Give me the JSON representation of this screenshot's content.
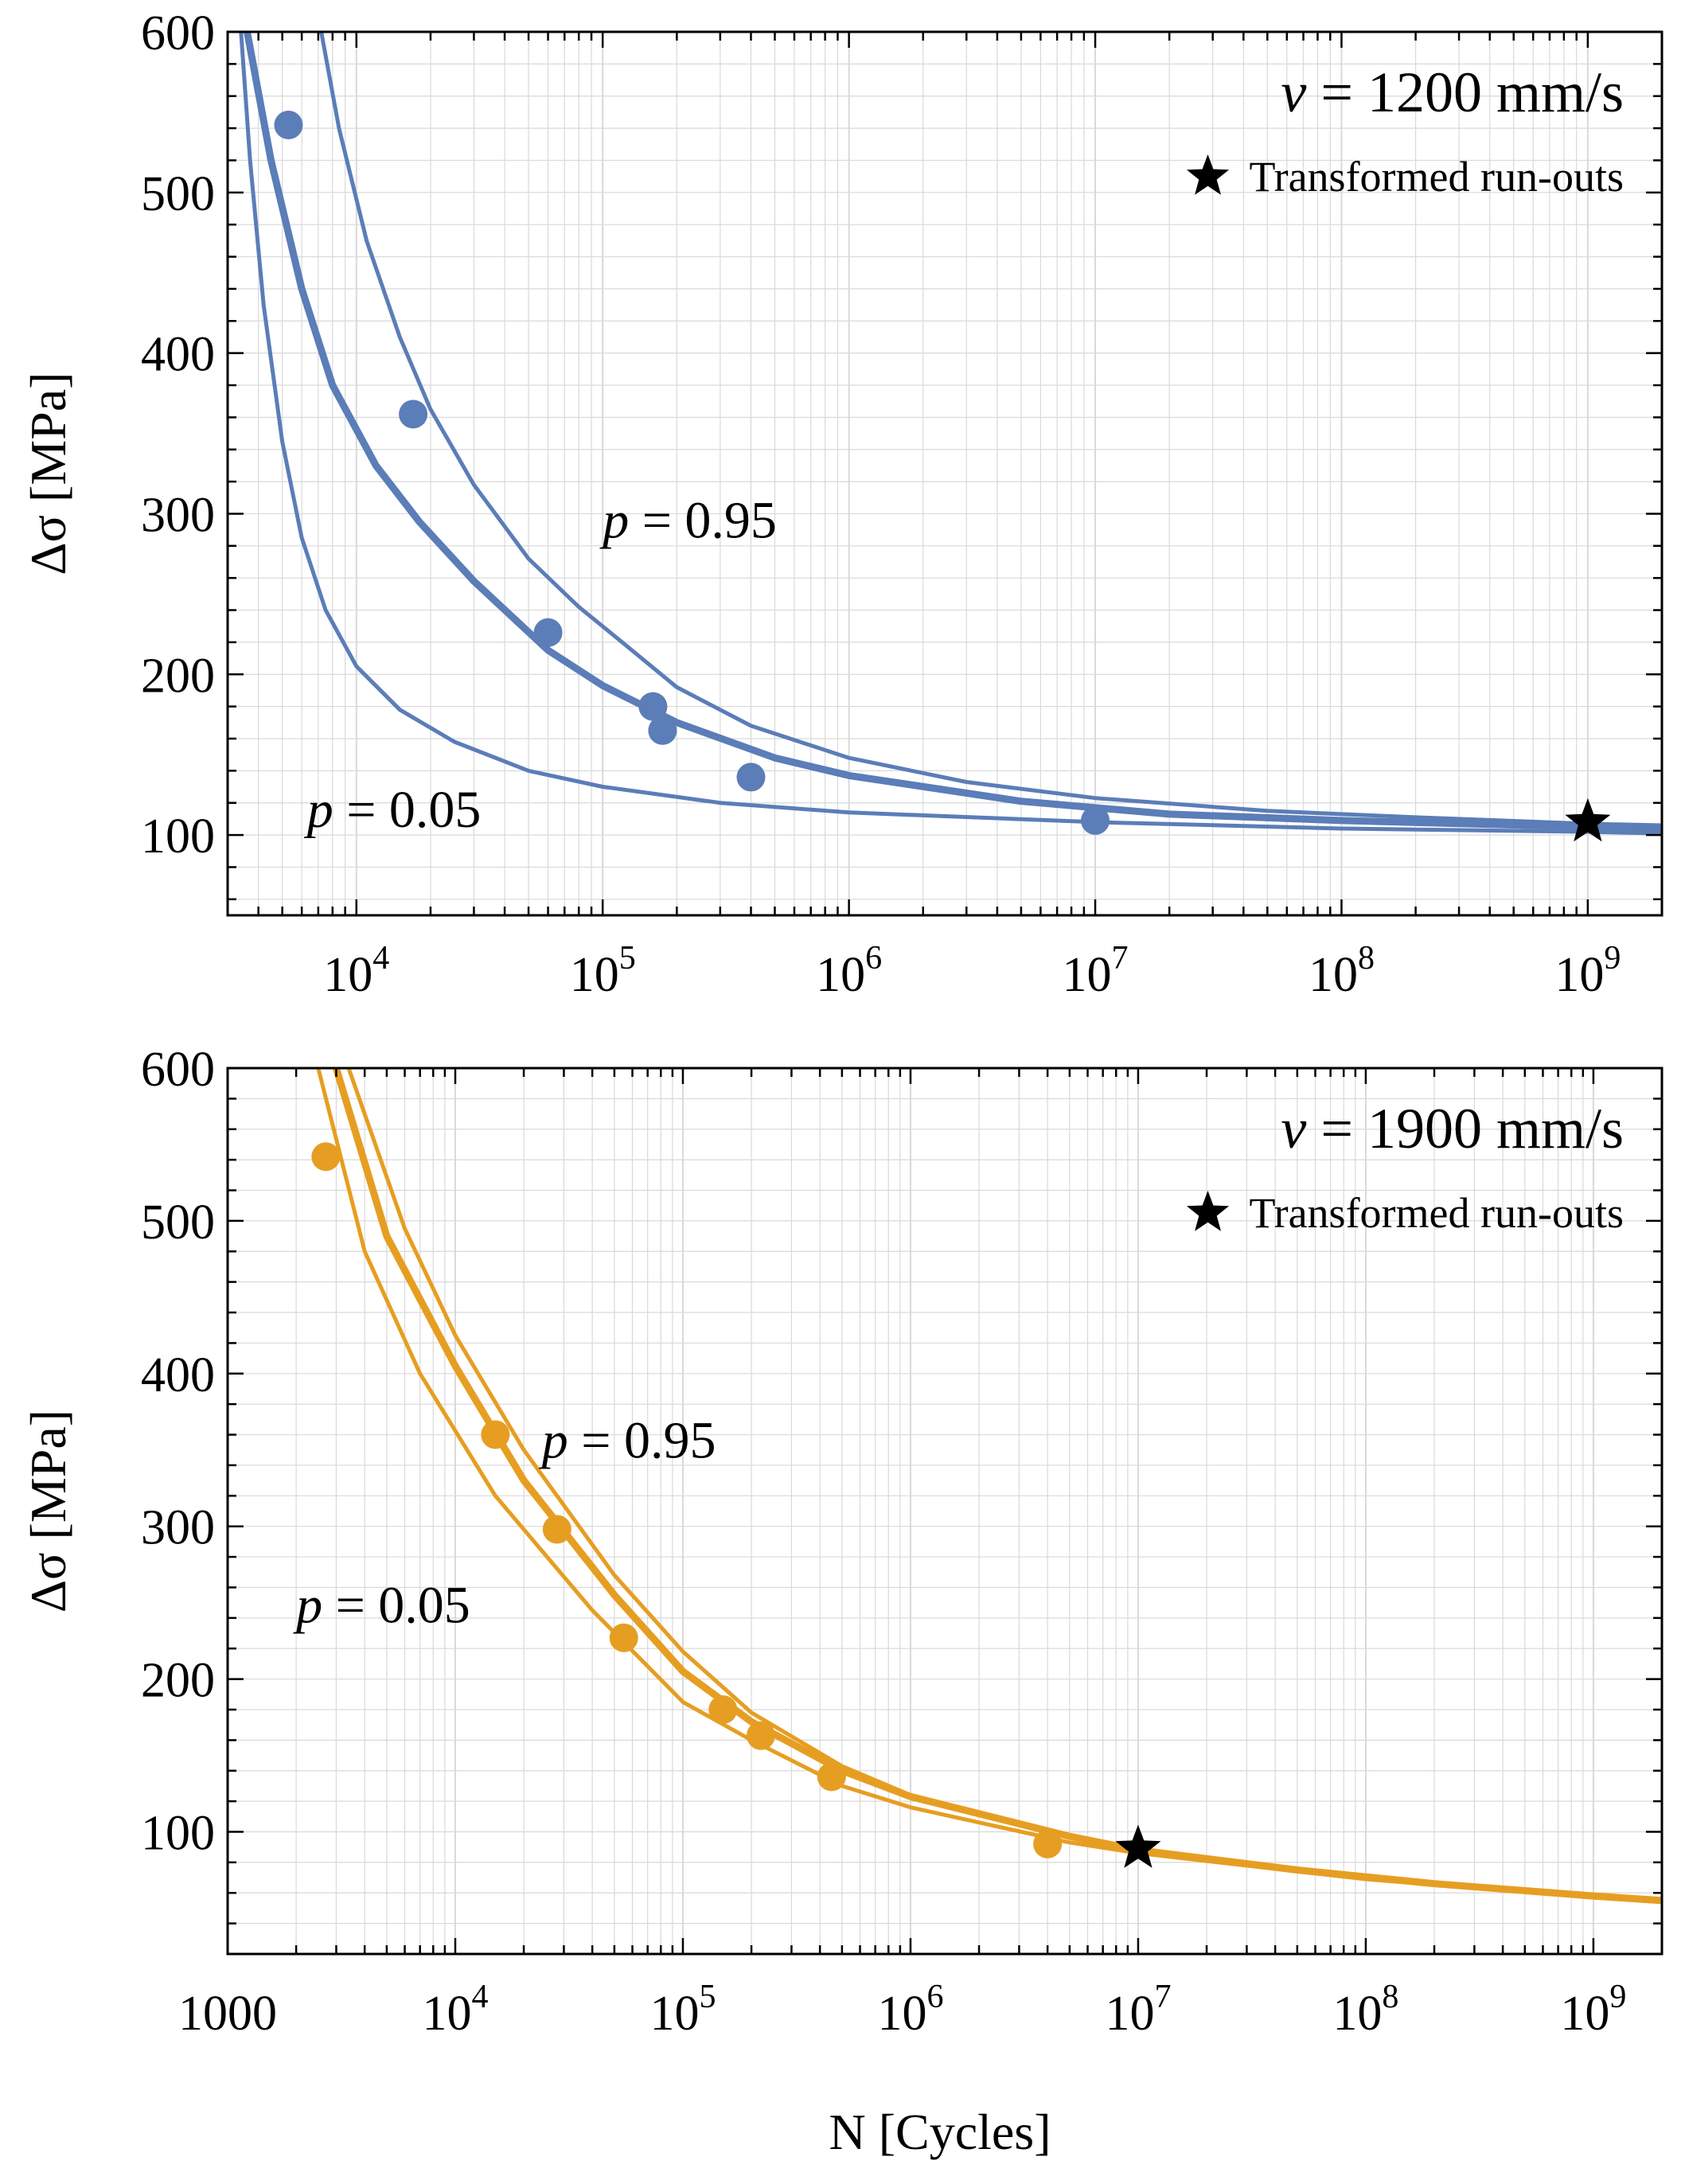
{
  "colors": {
    "top_series": "#5B7DB8",
    "bottom_series": "#E69E22",
    "runout": "#000000",
    "grid": "#d9d9d9"
  },
  "shared": {
    "xlabel": "N [Cycles]"
  },
  "chart_data": [
    {
      "type": "line",
      "id": "top",
      "title": "v = 1200 mm/s",
      "title_var": "v",
      "title_rest": " = 1200 mm/s",
      "xlabel": "",
      "ylabel": "Δσ [MPa]",
      "xscale": "log",
      "xlim": [
        3000,
        2000000000
      ],
      "ylim": [
        50,
        600
      ],
      "yticks": [
        100,
        200,
        300,
        400,
        500,
        600
      ],
      "xticks": [
        {
          "value": 10000,
          "base": "10",
          "exp": "4"
        },
        {
          "value": 100000,
          "base": "10",
          "exp": "5"
        },
        {
          "value": 1000000,
          "base": "10",
          "exp": "6"
        },
        {
          "value": 10000000,
          "base": "10",
          "exp": "7"
        },
        {
          "value": 100000000,
          "base": "10",
          "exp": "8"
        },
        {
          "value": 1000000000,
          "base": "10",
          "exp": "9"
        }
      ],
      "legend": {
        "position": "top-right",
        "label": "Transformed run-outs"
      },
      "annotations": [
        {
          "var": "p",
          "text": " = 0.95",
          "x": 100000,
          "y": 285
        },
        {
          "var": "p",
          "text": " = 0.05",
          "x": 6300,
          "y": 105
        }
      ],
      "series": [
        {
          "name": "median",
          "role": "median",
          "width": 9,
          "points": [
            [
              3600,
              600
            ],
            [
              4500,
              520
            ],
            [
              6000,
              440
            ],
            [
              8000,
              380
            ],
            [
              12000,
              330
            ],
            [
              18000,
              295
            ],
            [
              30000,
              258
            ],
            [
              60000,
              215
            ],
            [
              100000,
              193
            ],
            [
              200000,
              170
            ],
            [
              500000,
              148
            ],
            [
              1000000,
              137
            ],
            [
              5000000,
              121
            ],
            [
              20000000,
              113
            ],
            [
              100000000,
              109
            ],
            [
              1000000000,
              105
            ],
            [
              2000000000,
              104
            ]
          ]
        },
        {
          "name": "p = 0.95",
          "role": "bound",
          "width": 5,
          "points": [
            [
              7200,
              600
            ],
            [
              8500,
              540
            ],
            [
              11000,
              470
            ],
            [
              15000,
              410
            ],
            [
              20000,
              365
            ],
            [
              30000,
              318
            ],
            [
              50000,
              272
            ],
            [
              80000,
              242
            ],
            [
              120000,
              220
            ],
            [
              200000,
              192
            ],
            [
              400000,
              168
            ],
            [
              1000000,
              148
            ],
            [
              3000000,
              133
            ],
            [
              10000000,
              123
            ],
            [
              50000000,
              115
            ],
            [
              200000000,
              111
            ],
            [
              1000000000,
              107
            ],
            [
              2000000000,
              106
            ]
          ]
        },
        {
          "name": "p = 0.05",
          "role": "bound",
          "width": 5,
          "points": [
            [
              3400,
              600
            ],
            [
              3700,
              520
            ],
            [
              4200,
              430
            ],
            [
              5000,
              345
            ],
            [
              6000,
              285
            ],
            [
              7500,
              240
            ],
            [
              10000,
              205
            ],
            [
              15000,
              178
            ],
            [
              25000,
              158
            ],
            [
              50000,
              140
            ],
            [
              100000,
              130
            ],
            [
              300000,
              120
            ],
            [
              1000000,
              114
            ],
            [
              10000000,
              108
            ],
            [
              100000000,
              104
            ],
            [
              1000000000,
              102
            ],
            [
              2000000000,
              101
            ]
          ]
        }
      ],
      "points": [
        {
          "x": 5300,
          "y": 542
        },
        {
          "x": 17000,
          "y": 362
        },
        {
          "x": 60000,
          "y": 226
        },
        {
          "x": 160000,
          "y": 180
        },
        {
          "x": 175000,
          "y": 165
        },
        {
          "x": 400000,
          "y": 136
        },
        {
          "x": 10000000,
          "y": 109
        }
      ],
      "runouts": [
        {
          "x": 1000000000,
          "y": 108
        }
      ]
    },
    {
      "type": "line",
      "id": "bottom",
      "title": "v = 1900 mm/s",
      "title_var": "v",
      "title_rest": " = 1900 mm/s",
      "xlabel": "N [Cycles]",
      "ylabel": "Δσ [MPa]",
      "xscale": "log",
      "xlim": [
        1000,
        2000000000
      ],
      "ylim": [
        20,
        600
      ],
      "yticks": [
        100,
        200,
        300,
        400,
        500,
        600
      ],
      "xticks": [
        {
          "value": 1000,
          "base": "1000",
          "exp": ""
        },
        {
          "value": 10000,
          "base": "10",
          "exp": "4"
        },
        {
          "value": 100000,
          "base": "10",
          "exp": "5"
        },
        {
          "value": 1000000,
          "base": "10",
          "exp": "6"
        },
        {
          "value": 10000000,
          "base": "10",
          "exp": "7"
        },
        {
          "value": 100000000,
          "base": "10",
          "exp": "8"
        },
        {
          "value": 1000000000,
          "base": "10",
          "exp": "9"
        }
      ],
      "legend": {
        "position": "top-right",
        "label": "Transformed run-outs"
      },
      "annotations": [
        {
          "var": "p",
          "text": " = 0.95",
          "x": 24000,
          "y": 345
        },
        {
          "var": "p",
          "text": " = 0.05",
          "x": 2000,
          "y": 237
        }
      ],
      "series": [
        {
          "name": "median",
          "role": "median",
          "width": 9,
          "points": [
            [
              3000,
              600
            ],
            [
              5000,
              490
            ],
            [
              10000,
              405
            ],
            [
              20000,
              330
            ],
            [
              50000,
              255
            ],
            [
              100000,
              205
            ],
            [
              200000,
              172
            ],
            [
              500000,
              140
            ],
            [
              1000000,
              123
            ],
            [
              5000000,
              97
            ],
            [
              10000000,
              88
            ],
            [
              50000000,
              75
            ],
            [
              200000000,
              66
            ],
            [
              1000000000,
              58
            ],
            [
              2000000000,
              55
            ]
          ]
        },
        {
          "name": "p = 0.95",
          "role": "bound",
          "width": 5,
          "points": [
            [
              3400,
              600
            ],
            [
              6000,
              495
            ],
            [
              10000,
              425
            ],
            [
              20000,
              350
            ],
            [
              50000,
              268
            ],
            [
              100000,
              218
            ],
            [
              200000,
              178
            ],
            [
              500000,
              143
            ],
            [
              1000000,
              124
            ],
            [
              5000000,
              97
            ],
            [
              10000000,
              88
            ],
            [
              100000000,
              70
            ],
            [
              1000000000,
              57
            ],
            [
              2000000000,
              54
            ]
          ]
        },
        {
          "name": "p = 0.05",
          "role": "bound",
          "width": 5,
          "points": [
            [
              2500,
              600
            ],
            [
              4000,
              480
            ],
            [
              7000,
              400
            ],
            [
              15000,
              320
            ],
            [
              40000,
              245
            ],
            [
              100000,
              185
            ],
            [
              200000,
              160
            ],
            [
              500000,
              130
            ],
            [
              1000000,
              116
            ],
            [
              5000000,
              93
            ],
            [
              10000000,
              86
            ],
            [
              100000000,
              69
            ],
            [
              1000000000,
              57
            ],
            [
              2000000000,
              54
            ]
          ]
        }
      ],
      "points": [
        {
          "x": 2700,
          "y": 542
        },
        {
          "x": 15000,
          "y": 360
        },
        {
          "x": 28000,
          "y": 298
        },
        {
          "x": 55000,
          "y": 227
        },
        {
          "x": 150000,
          "y": 180
        },
        {
          "x": 220000,
          "y": 163
        },
        {
          "x": 450000,
          "y": 136
        },
        {
          "x": 4000000,
          "y": 92
        }
      ],
      "runouts": [
        {
          "x": 10000000,
          "y": 89
        }
      ]
    }
  ]
}
